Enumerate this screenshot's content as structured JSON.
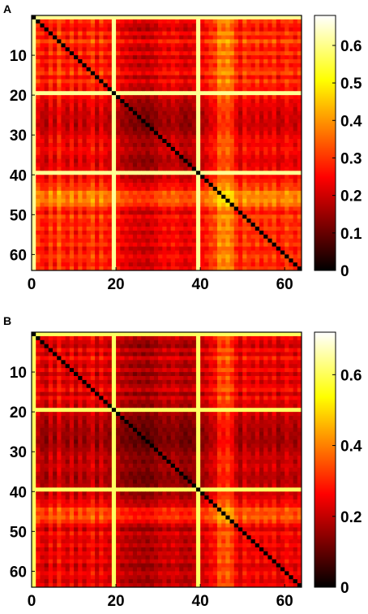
{
  "chart_data": [
    {
      "type": "heatmap",
      "panel_label": "A",
      "title": "",
      "xlabel": "",
      "ylabel": "",
      "size": 64,
      "xlim": [
        0,
        64
      ],
      "ylim": [
        64,
        0
      ],
      "x_ticks": [
        0,
        20,
        40,
        60
      ],
      "y_ticks": [
        10,
        20,
        30,
        40,
        50,
        60
      ],
      "colorbar": {
        "min": 0,
        "max": 0.68,
        "ticks": [
          0,
          0.1,
          0.2,
          0.3,
          0.4,
          0.5,
          0.6
        ],
        "colormap": "hot"
      },
      "row_strength": [
        0.55,
        0.28,
        0.22,
        0.18,
        0.3,
        0.2,
        0.35,
        0.24,
        0.2,
        0.3,
        0.18,
        0.28,
        0.2,
        0.26,
        0.32,
        0.18,
        0.3,
        0.22,
        0.2,
        0.55,
        0.2,
        0.15,
        0.14,
        0.12,
        0.1,
        0.1,
        0.09,
        0.08,
        0.1,
        0.12,
        0.16,
        0.18,
        0.15,
        0.2,
        0.18,
        0.14,
        0.12,
        0.14,
        0.16,
        0.55,
        0.18,
        0.22,
        0.28,
        0.3,
        0.45,
        0.42,
        0.46,
        0.4,
        0.28,
        0.2,
        0.32,
        0.26,
        0.24,
        0.3,
        0.22,
        0.28,
        0.24,
        0.3,
        0.2,
        0.24,
        0.3,
        0.26,
        0.22,
        0.28
      ],
      "highlight_lines": [
        0,
        19,
        39
      ],
      "diagonal": true
    },
    {
      "type": "heatmap",
      "panel_label": "B",
      "title": "",
      "xlabel": "",
      "ylabel": "",
      "size": 64,
      "xlim": [
        0,
        64
      ],
      "ylim": [
        64,
        0
      ],
      "x_ticks": [
        0,
        20,
        40,
        60
      ],
      "y_ticks": [
        10,
        20,
        30,
        40,
        50,
        60
      ],
      "colorbar": {
        "min": 0,
        "max": 0.72,
        "ticks": [
          0,
          0.2,
          0.4,
          0.6
        ],
        "colormap": "hot"
      },
      "row_strength": [
        0.5,
        0.24,
        0.18,
        0.14,
        0.26,
        0.16,
        0.3,
        0.2,
        0.16,
        0.26,
        0.14,
        0.24,
        0.16,
        0.22,
        0.28,
        0.14,
        0.26,
        0.18,
        0.16,
        0.52,
        0.16,
        0.12,
        0.11,
        0.1,
        0.08,
        0.08,
        0.07,
        0.06,
        0.08,
        0.1,
        0.13,
        0.15,
        0.12,
        0.16,
        0.15,
        0.11,
        0.1,
        0.11,
        0.13,
        0.55,
        0.15,
        0.18,
        0.24,
        0.26,
        0.42,
        0.38,
        0.44,
        0.36,
        0.24,
        0.16,
        0.28,
        0.22,
        0.2,
        0.26,
        0.18,
        0.24,
        0.2,
        0.26,
        0.16,
        0.2,
        0.26,
        0.22,
        0.18,
        0.24
      ],
      "highlight_lines": [
        0,
        19,
        39
      ],
      "diagonal": true
    }
  ]
}
